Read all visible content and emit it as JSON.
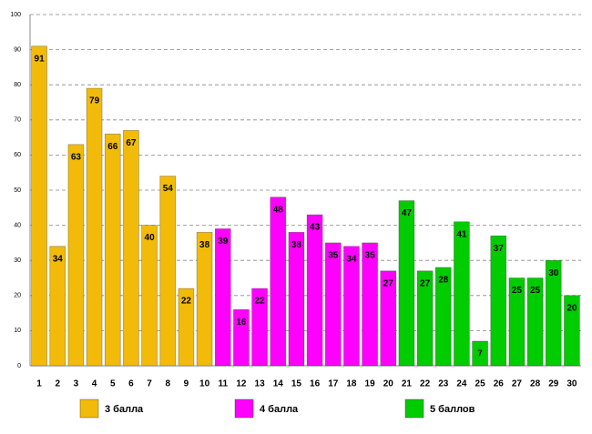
{
  "chart_data": {
    "type": "bar",
    "categories": [
      "1",
      "2",
      "3",
      "4",
      "5",
      "6",
      "7",
      "8",
      "9",
      "10",
      "11",
      "12",
      "13",
      "14",
      "15",
      "16",
      "17",
      "18",
      "19",
      "20",
      "21",
      "22",
      "23",
      "24",
      "25",
      "26",
      "27",
      "28",
      "29",
      "30"
    ],
    "series": [
      {
        "name": "3 балла",
        "color": "#f2bb0a",
        "values": [
          91,
          34,
          63,
          79,
          66,
          67,
          40,
          54,
          22,
          38,
          null,
          null,
          null,
          null,
          null,
          null,
          null,
          null,
          null,
          null,
          null,
          null,
          null,
          null,
          null,
          null,
          null,
          null,
          null,
          null
        ]
      },
      {
        "name": "4 балла",
        "color": "#ff00ff",
        "values": [
          null,
          null,
          null,
          null,
          null,
          null,
          null,
          null,
          null,
          null,
          39,
          16,
          22,
          48,
          38,
          43,
          35,
          34,
          35,
          27,
          null,
          null,
          null,
          null,
          null,
          null,
          null,
          null,
          null,
          null
        ]
      },
      {
        "name": "5 баллов",
        "color": "#00cc00",
        "values": [
          null,
          null,
          null,
          null,
          null,
          null,
          null,
          null,
          null,
          null,
          null,
          null,
          null,
          null,
          null,
          null,
          null,
          null,
          null,
          null,
          47,
          27,
          28,
          41,
          7,
          37,
          25,
          25,
          30,
          20
        ]
      }
    ],
    "ylim": [
      0,
      100
    ],
    "yticks": [
      0,
      10,
      20,
      30,
      40,
      50,
      60,
      70,
      80,
      90,
      100
    ],
    "grid": true
  }
}
